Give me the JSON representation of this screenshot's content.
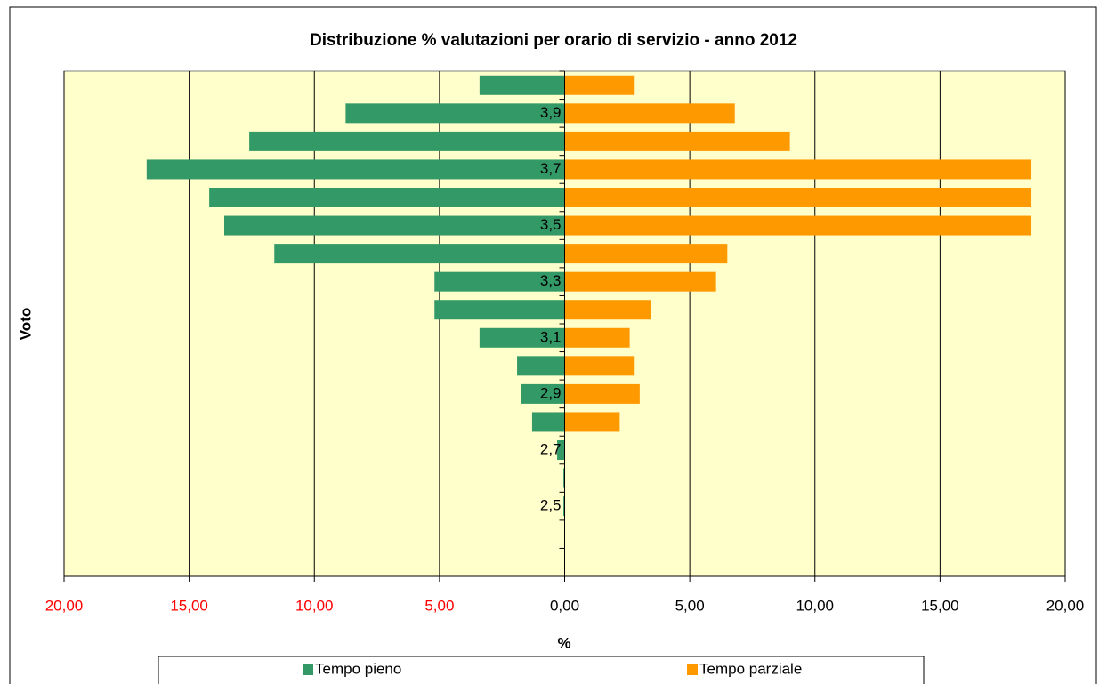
{
  "chart_data": {
    "type": "bar",
    "orientation": "horizontal",
    "title": "Distribuzione % valutazioni per orario di servizio - anno 2012",
    "x_label": "%",
    "y_label": "Voto",
    "categories": [
      null,
      "3,9",
      null,
      "3,7",
      null,
      "3,5",
      null,
      "3,3",
      null,
      "3,1",
      null,
      "2,9",
      null,
      "2,7",
      null,
      "2,5",
      null,
      null
    ],
    "series": [
      {
        "name": "Tempo pieno",
        "color": "#339966",
        "values": [
          -3.4,
          -8.75,
          -12.6,
          -16.7,
          -14.2,
          -13.6,
          -11.6,
          -5.2,
          -5.2,
          -3.4,
          -1.9,
          -1.75,
          -1.3,
          -0.3,
          -0.05,
          -0.05,
          null,
          null
        ]
      },
      {
        "name": "Tempo parziale",
        "color": "#ff9900",
        "values": [
          2.8,
          6.8,
          9.0,
          18.65,
          18.65,
          18.65,
          6.5,
          6.05,
          3.45,
          2.6,
          2.8,
          3.0,
          2.2,
          null,
          null,
          null,
          null,
          null
        ]
      }
    ],
    "xlim": [
      -20,
      20
    ],
    "xticks": [
      {
        "value": -20,
        "label": "20,00"
      },
      {
        "value": -15,
        "label": "15,00"
      },
      {
        "value": -10,
        "label": "10,00"
      },
      {
        "value": -5,
        "label": "5,00"
      },
      {
        "value": 0,
        "label": "0,00"
      },
      {
        "value": 5,
        "label": "5,00"
      },
      {
        "value": 10,
        "label": "10,00"
      },
      {
        "value": 15,
        "label": "15,00"
      },
      {
        "value": 20,
        "label": "20,00"
      }
    ],
    "negative_tick_color": "#ff0000",
    "plot_background": "#ffffcc",
    "grid": true,
    "legend": "bottom"
  }
}
